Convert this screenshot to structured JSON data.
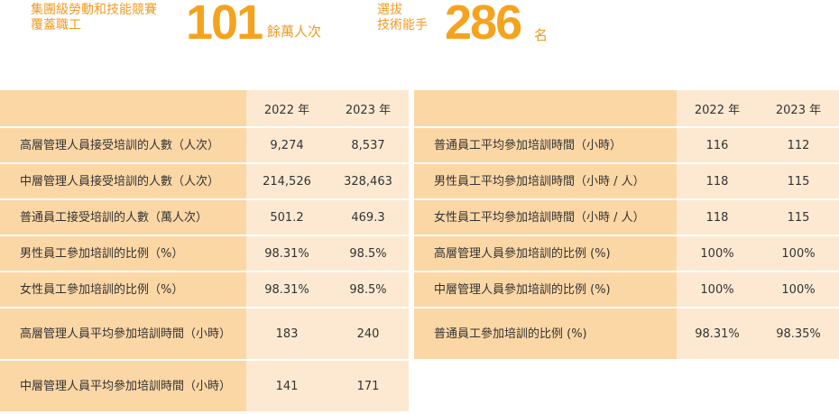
{
  "stats": [
    {
      "label": "集團級勞動和技能競賽\n覆蓋職工",
      "value": "101",
      "unit": "餘萬人次"
    },
    {
      "label": "選拔\n技術能手",
      "value": "286",
      "unit": "名"
    }
  ],
  "left_table": {
    "headers": [
      "",
      "2022 年",
      "2023 年"
    ],
    "rows": [
      {
        "label": "高層管理人員接受培訓的人數（人次）",
        "y2022": "9,274",
        "y2023": "8,537"
      },
      {
        "label": "中層管理人員接受培訓的人數（人次）",
        "y2022": "214,526",
        "y2023": "328,463"
      },
      {
        "label": "普通員工接受培訓的人數（萬人次）",
        "y2022": "501.2",
        "y2023": "469.3"
      },
      {
        "label": "男性員工參加培訓的比例（%）",
        "y2022": "98.31%",
        "y2023": "98.5%"
      },
      {
        "label": "女性員工參加培訓的比例（%）",
        "y2022": "98.31%",
        "y2023": "98.5%"
      },
      {
        "label": "高層管理人員平均參加培訓時間（小時）",
        "y2022": "183",
        "y2023": "240"
      },
      {
        "label": "中層管理人員平均參加培訓時間（小時）",
        "y2022": "141",
        "y2023": "171"
      }
    ]
  },
  "right_table": {
    "headers": [
      "",
      "2022 年",
      "2023 年"
    ],
    "rows": [
      {
        "label": "普通員工平均參加培訓時間（小時）",
        "y2022": "116",
        "y2023": "112"
      },
      {
        "label": "男性員工平均參加培訓時間（小時 / 人）",
        "y2022": "118",
        "y2023": "115"
      },
      {
        "label": "女性員工平均參加培訓時間（小時 / 人）",
        "y2022": "118",
        "y2023": "115"
      },
      {
        "label": "高層管理人員參加培訓的比例 (%)",
        "y2022": "100%",
        "y2023": "100%"
      },
      {
        "label": "中層管理人員參加培訓的比例 (%)",
        "y2022": "100%",
        "y2023": "100%"
      },
      {
        "label": "普通員工參加培訓的比例 (%)",
        "y2022": "98.31%",
        "y2023": "98.35%"
      }
    ]
  }
}
